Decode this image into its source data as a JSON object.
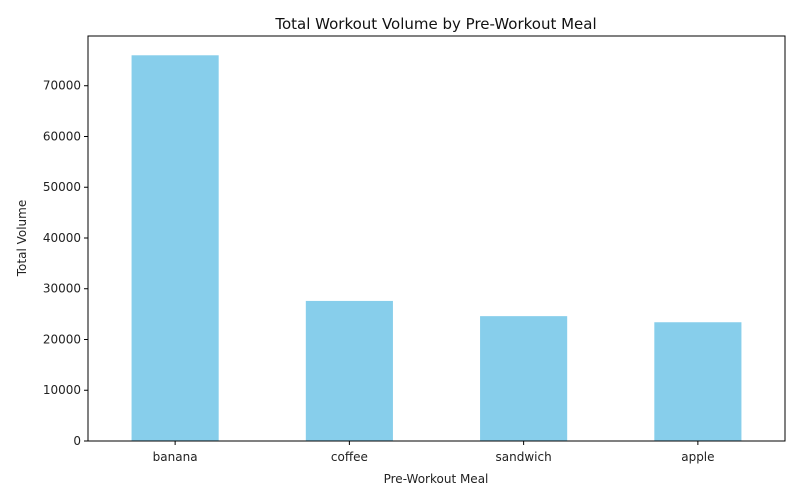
{
  "chart_data": {
    "type": "bar",
    "title": "Total Workout Volume by Pre-Workout Meal",
    "xlabel": "Pre-Workout Meal",
    "ylabel": "Total Volume",
    "categories": [
      "banana",
      "coffee",
      "sandwich",
      "apple"
    ],
    "values": [
      76000,
      27600,
      24600,
      23400
    ],
    "ylim": [
      0,
      79800
    ],
    "yticks": [
      0,
      10000,
      20000,
      30000,
      40000,
      50000,
      60000,
      70000
    ],
    "grid": false,
    "bar_color": "#87ceeb"
  }
}
